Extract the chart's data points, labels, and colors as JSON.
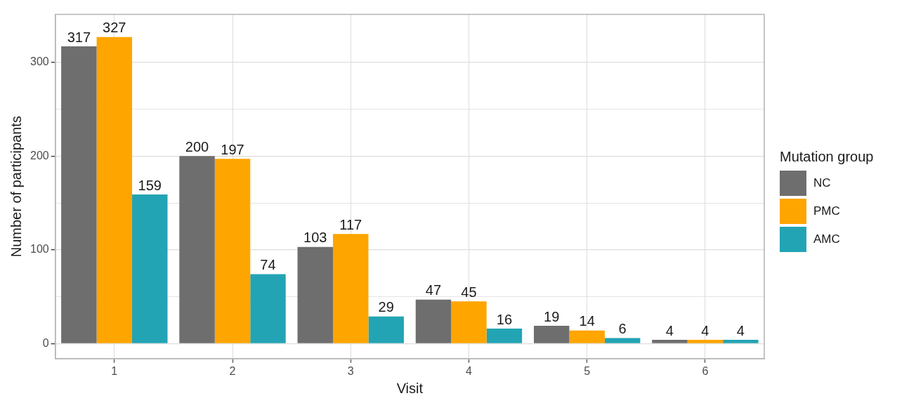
{
  "chart_data": {
    "type": "bar",
    "xlabel": "Visit",
    "ylabel": "Number of participants",
    "legend_title": "Mutation group",
    "categories": [
      "1",
      "2",
      "3",
      "4",
      "5",
      "6"
    ],
    "series": [
      {
        "name": "NC",
        "color": "#6e6e6e",
        "values": [
          317,
          200,
          103,
          47,
          19,
          4
        ]
      },
      {
        "name": "PMC",
        "color": "#ffa500",
        "values": [
          327,
          197,
          117,
          45,
          14,
          4
        ]
      },
      {
        "name": "AMC",
        "color": "#23a4b4",
        "values": [
          159,
          74,
          29,
          16,
          6,
          4
        ]
      }
    ],
    "ylim": [
      -16,
      351
    ],
    "yticks": [
      0,
      {
        "value": 50,
        "label": null
      },
      100,
      {
        "value": 150,
        "label": null
      },
      200,
      {
        "value": 250,
        "label": null
      },
      300
    ],
    "grid": true,
    "legend": "right",
    "data_labels": true
  }
}
